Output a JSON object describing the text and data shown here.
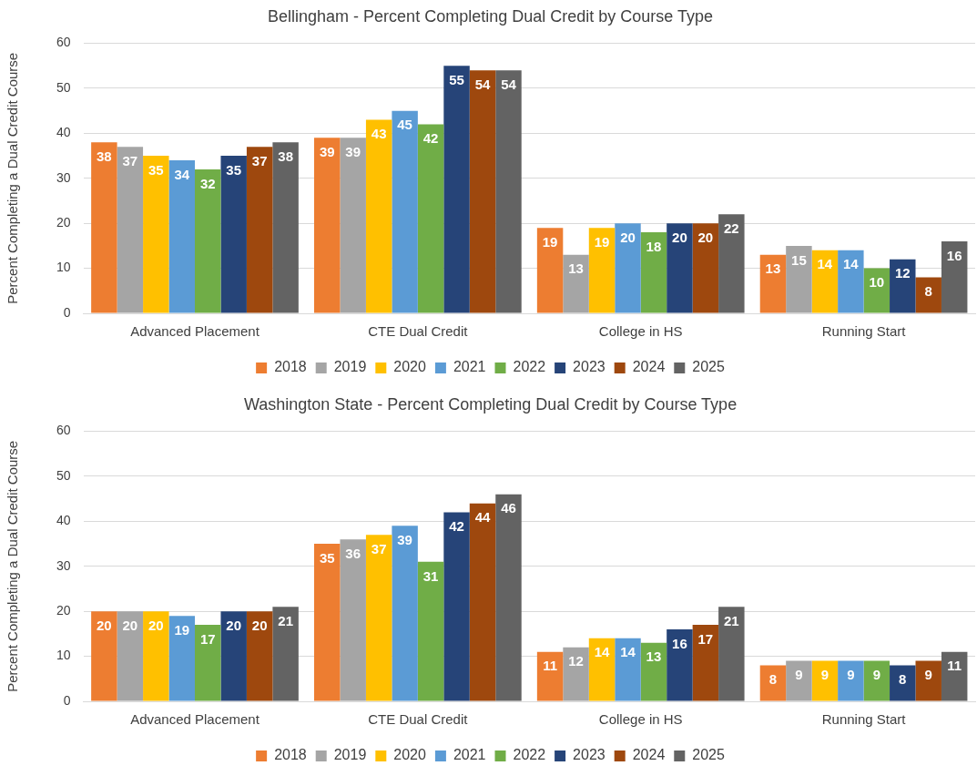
{
  "chart_data": [
    {
      "type": "bar",
      "title": "Bellingham - Percent Completing Dual Credit by Course Type",
      "ylabel": "Percent Completing a Dual Credit Course",
      "categories": [
        "Advanced Placement",
        "CTE Dual Credit",
        "College in HS",
        "Running Start"
      ],
      "series": [
        {
          "name": "2018",
          "color": "#ed7d31",
          "values": [
            38,
            39,
            19,
            13
          ]
        },
        {
          "name": "2019",
          "color": "#a5a5a5",
          "values": [
            37,
            39,
            13,
            15
          ]
        },
        {
          "name": "2020",
          "color": "#ffc000",
          "values": [
            35,
            43,
            19,
            14
          ]
        },
        {
          "name": "2021",
          "color": "#5b9bd5",
          "values": [
            34,
            45,
            20,
            14
          ]
        },
        {
          "name": "2022",
          "color": "#70ad47",
          "values": [
            32,
            42,
            18,
            10
          ]
        },
        {
          "name": "2023",
          "color": "#264478",
          "values": [
            35,
            55,
            20,
            12
          ]
        },
        {
          "name": "2024",
          "color": "#9e480e",
          "values": [
            37,
            54,
            20,
            8
          ]
        },
        {
          "name": "2025",
          "color": "#636363",
          "values": [
            38,
            54,
            22,
            16
          ]
        }
      ],
      "ylim": [
        0,
        60
      ],
      "yticks": [
        0,
        10,
        20,
        30,
        40,
        50,
        60
      ],
      "grid": "y",
      "legend": "bottom",
      "data_labels": true
    },
    {
      "type": "bar",
      "title": "Washington State - Percent Completing Dual Credit by Course Type",
      "ylabel": "Percent Completing a Dual Credit Course",
      "categories": [
        "Advanced Placement",
        "CTE Dual Credit",
        "College in HS",
        "Running Start"
      ],
      "series": [
        {
          "name": "2018",
          "color": "#ed7d31",
          "values": [
            20,
            35,
            11,
            8
          ]
        },
        {
          "name": "2019",
          "color": "#a5a5a5",
          "values": [
            20,
            36,
            12,
            9
          ]
        },
        {
          "name": "2020",
          "color": "#ffc000",
          "values": [
            20,
            37,
            14,
            9
          ]
        },
        {
          "name": "2021",
          "color": "#5b9bd5",
          "values": [
            19,
            39,
            14,
            9
          ]
        },
        {
          "name": "2022",
          "color": "#70ad47",
          "values": [
            17,
            31,
            13,
            9
          ]
        },
        {
          "name": "2023",
          "color": "#264478",
          "values": [
            20,
            42,
            16,
            8
          ]
        },
        {
          "name": "2024",
          "color": "#9e480e",
          "values": [
            20,
            44,
            17,
            9
          ]
        },
        {
          "name": "2025",
          "color": "#636363",
          "values": [
            21,
            46,
            21,
            11
          ]
        }
      ],
      "ylim": [
        0,
        60
      ],
      "yticks": [
        0,
        10,
        20,
        30,
        40,
        50,
        60
      ],
      "grid": "y",
      "legend": "bottom",
      "data_labels": true
    }
  ]
}
